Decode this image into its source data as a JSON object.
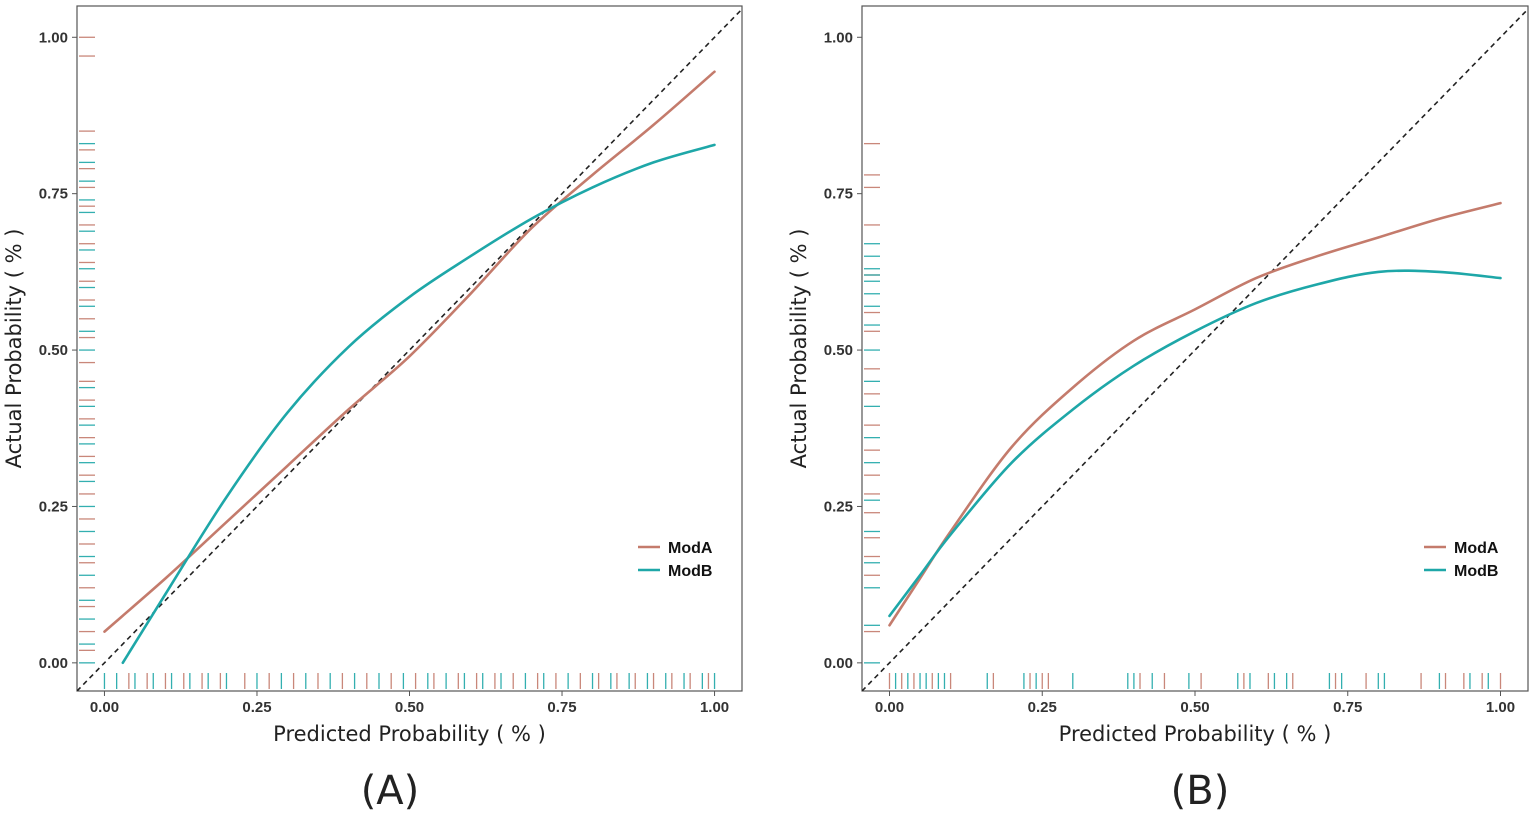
{
  "figure": {
    "panel_count": 2
  },
  "colors": {
    "ModA": "#c47b6c",
    "ModB": "#1ea7a8",
    "frame": "#555555",
    "diagonal": "#222222"
  },
  "chart_data": [
    {
      "type": "line",
      "panel_label": "(A)",
      "xlabel": "Predicted Probability ( % )",
      "ylabel": "Actual Probability ( % )",
      "xlim": [
        -0.045,
        1.045
      ],
      "ylim": [
        -0.045,
        1.05
      ],
      "x_ticks": [
        0.0,
        0.25,
        0.5,
        0.75,
        1.0
      ],
      "x_tick_labels": [
        "0.00",
        "0.25",
        "0.50",
        "0.75",
        "1.00"
      ],
      "y_ticks": [
        0.0,
        0.25,
        0.5,
        0.75,
        1.0
      ],
      "y_tick_labels": [
        "0.00",
        "0.25",
        "0.50",
        "0.75",
        "1.00"
      ],
      "reference_line": "y = x (dashed)",
      "legend": {
        "position": "bottom-right",
        "entries": [
          "ModA",
          "ModB"
        ]
      },
      "series": [
        {
          "name": "ModA",
          "x": [
            0.0,
            0.1,
            0.2,
            0.3,
            0.4,
            0.5,
            0.6,
            0.7,
            0.8,
            0.9,
            1.0
          ],
          "y": [
            0.05,
            0.135,
            0.225,
            0.315,
            0.405,
            0.49,
            0.59,
            0.695,
            0.78,
            0.86,
            0.945
          ]
        },
        {
          "name": "ModB",
          "x": [
            0.03,
            0.1,
            0.2,
            0.3,
            0.4,
            0.5,
            0.6,
            0.7,
            0.8,
            0.9,
            1.0
          ],
          "y": [
            0.0,
            0.11,
            0.265,
            0.4,
            0.505,
            0.585,
            0.65,
            0.71,
            0.76,
            0.8,
            0.828
          ]
        }
      ],
      "rug_x": {
        "ModA": [
          0.04,
          0.07,
          0.1,
          0.13,
          0.16,
          0.19,
          0.23,
          0.27,
          0.31,
          0.35,
          0.39,
          0.43,
          0.47,
          0.51,
          0.54,
          0.58,
          0.61,
          0.64,
          0.67,
          0.71,
          0.74,
          0.78,
          0.81,
          0.84,
          0.87,
          0.9,
          0.93,
          0.96,
          0.99
        ],
        "ModB": [
          0.0,
          0.02,
          0.05,
          0.08,
          0.11,
          0.14,
          0.17,
          0.2,
          0.25,
          0.29,
          0.33,
          0.37,
          0.41,
          0.45,
          0.49,
          0.53,
          0.56,
          0.59,
          0.62,
          0.65,
          0.69,
          0.72,
          0.76,
          0.8,
          0.83,
          0.86,
          0.89,
          0.92,
          0.95,
          0.98,
          1.0
        ]
      },
      "rug_y": {
        "ModA": [
          0.02,
          0.05,
          0.09,
          0.12,
          0.16,
          0.19,
          0.23,
          0.27,
          0.3,
          0.33,
          0.36,
          0.39,
          0.42,
          0.45,
          0.48,
          0.52,
          0.55,
          0.58,
          0.61,
          0.64,
          0.67,
          0.7,
          0.73,
          0.76,
          0.79,
          0.82,
          0.85,
          0.97,
          1.0
        ],
        "ModB": [
          0.0,
          0.03,
          0.07,
          0.1,
          0.14,
          0.17,
          0.21,
          0.25,
          0.29,
          0.32,
          0.35,
          0.38,
          0.41,
          0.44,
          0.5,
          0.53,
          0.57,
          0.6,
          0.63,
          0.66,
          0.69,
          0.72,
          0.74,
          0.77,
          0.8,
          0.83
        ]
      }
    },
    {
      "type": "line",
      "panel_label": "(B)",
      "xlabel": "Predicted Probability ( % )",
      "ylabel": "Actual Probability ( % )",
      "xlim": [
        -0.045,
        1.045
      ],
      "ylim": [
        -0.045,
        1.05
      ],
      "x_ticks": [
        0.0,
        0.25,
        0.5,
        0.75,
        1.0
      ],
      "x_tick_labels": [
        "0.00",
        "0.25",
        "0.50",
        "0.75",
        "1.00"
      ],
      "y_ticks": [
        0.0,
        0.25,
        0.5,
        0.75,
        1.0
      ],
      "y_tick_labels": [
        "0.00",
        "0.25",
        "0.50",
        "0.75",
        "1.00"
      ],
      "reference_line": "y = x (dashed)",
      "legend": {
        "position": "bottom-right",
        "entries": [
          "ModA",
          "ModB"
        ]
      },
      "series": [
        {
          "name": "ModA",
          "x": [
            0.0,
            0.05,
            0.1,
            0.2,
            0.3,
            0.4,
            0.5,
            0.6,
            0.7,
            0.8,
            0.9,
            1.0
          ],
          "y": [
            0.06,
            0.135,
            0.21,
            0.345,
            0.44,
            0.515,
            0.565,
            0.615,
            0.65,
            0.68,
            0.71,
            0.735
          ]
        },
        {
          "name": "ModB",
          "x": [
            0.0,
            0.05,
            0.1,
            0.2,
            0.3,
            0.4,
            0.5,
            0.6,
            0.7,
            0.8,
            0.9,
            1.0
          ],
          "y": [
            0.075,
            0.14,
            0.205,
            0.32,
            0.405,
            0.475,
            0.53,
            0.575,
            0.605,
            0.625,
            0.625,
            0.615
          ]
        }
      ],
      "rug_x": {
        "ModA": [
          0.0,
          0.02,
          0.04,
          0.07,
          0.1,
          0.17,
          0.23,
          0.25,
          0.26,
          0.41,
          0.45,
          0.51,
          0.58,
          0.62,
          0.66,
          0.73,
          0.78,
          0.87,
          0.91,
          0.94,
          0.97,
          1.0
        ],
        "ModB": [
          0.01,
          0.03,
          0.05,
          0.06,
          0.08,
          0.09,
          0.16,
          0.22,
          0.24,
          0.3,
          0.39,
          0.4,
          0.43,
          0.49,
          0.57,
          0.59,
          0.63,
          0.65,
          0.72,
          0.74,
          0.8,
          0.81,
          0.9,
          0.95,
          0.98
        ]
      },
      "rug_y": {
        "ModA": [
          0.05,
          0.14,
          0.17,
          0.2,
          0.24,
          0.27,
          0.3,
          0.34,
          0.38,
          0.43,
          0.47,
          0.53,
          0.56,
          0.62,
          0.7,
          0.76,
          0.78,
          0.83
        ],
        "ModB": [
          0.0,
          0.06,
          0.12,
          0.16,
          0.21,
          0.26,
          0.32,
          0.36,
          0.41,
          0.45,
          0.5,
          0.54,
          0.57,
          0.59,
          0.61,
          0.62,
          0.63,
          0.65,
          0.67
        ]
      }
    }
  ]
}
